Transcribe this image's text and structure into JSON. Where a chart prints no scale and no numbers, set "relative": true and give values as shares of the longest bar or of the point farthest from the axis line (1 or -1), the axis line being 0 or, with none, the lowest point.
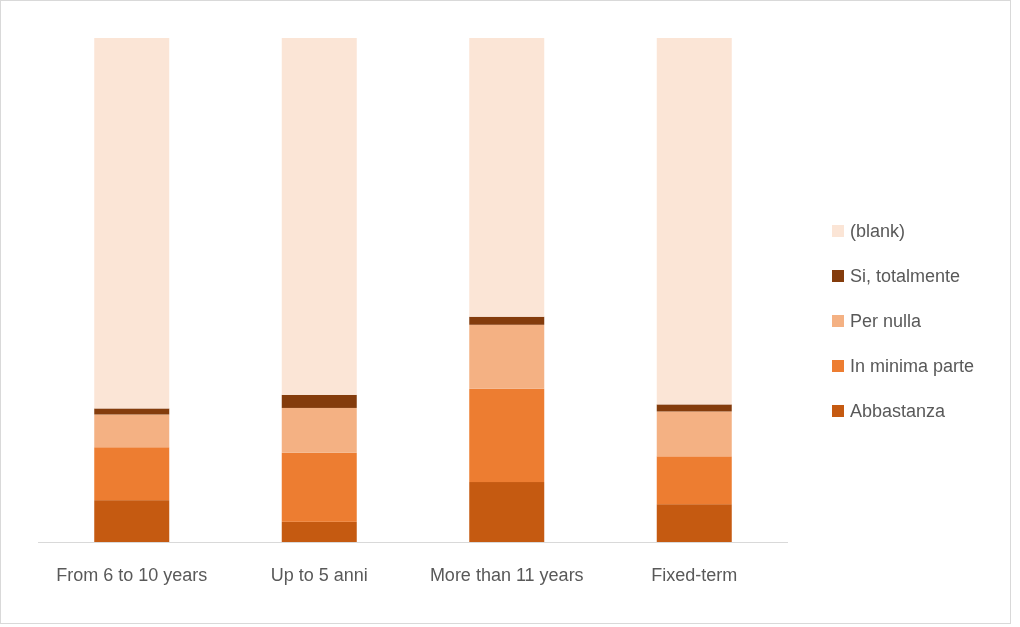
{
  "chart_data": {
    "type": "bar",
    "stacked": true,
    "relative": true,
    "legend": "right",
    "categories": [
      "From 6 to 10 years",
      "Up to 5 anni",
      "More than 11 years",
      "Fixed-term"
    ],
    "series": [
      {
        "name": "Abbastanza",
        "color": "#c55a11",
        "values": [
          0.083,
          0.04,
          0.119,
          0.075
        ]
      },
      {
        "name": "In minima parte",
        "color": "#ed7d31",
        "values": [
          0.105,
          0.137,
          0.185,
          0.095
        ]
      },
      {
        "name": "Per nulla",
        "color": "#f4b183",
        "values": [
          0.065,
          0.089,
          0.127,
          0.089
        ]
      },
      {
        "name": "Si, totalmente",
        "color": "#843c0c",
        "values": [
          0.012,
          0.026,
          0.016,
          0.014
        ]
      },
      {
        "name": "(blank)",
        "color": "#fbe5d6",
        "values": [
          0.735,
          0.708,
          0.553,
          0.727
        ]
      }
    ]
  }
}
